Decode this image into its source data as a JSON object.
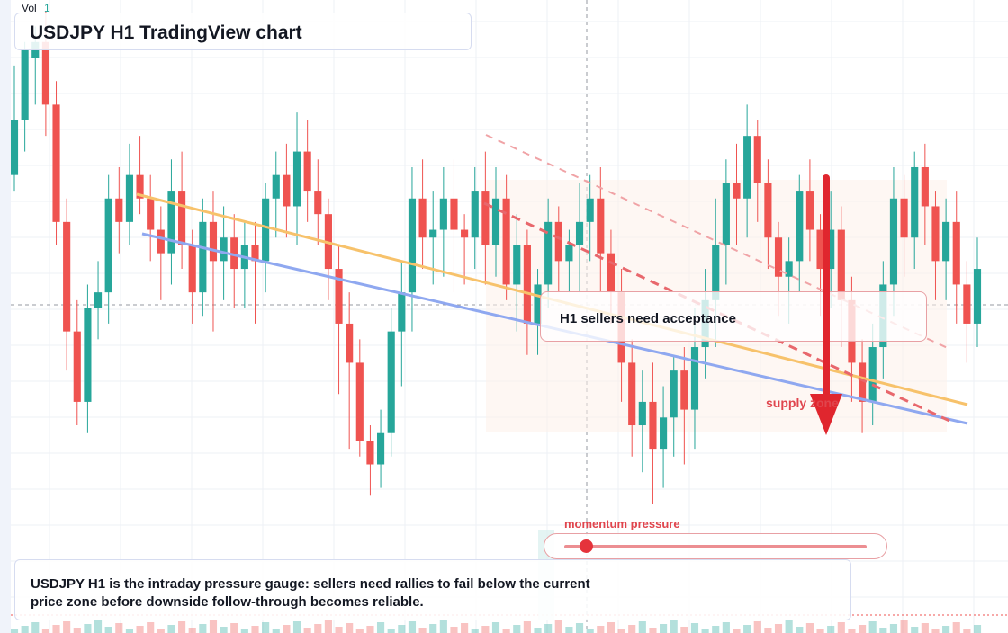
{
  "chart": {
    "symbol": "USDJPY",
    "timeframe": "H1",
    "vol_label": "Vol",
    "vol_value": "1"
  },
  "title": "USDJPY H1 TradingView chart",
  "callout": {
    "text": "H1 sellers need acceptance"
  },
  "zone_label": "supply zone",
  "momentum": {
    "label": "momentum pressure",
    "level": 0.07
  },
  "summary": "USDJPY H1 is the intraday pressure gauge: sellers need rallies to fail below the current price zone before downside follow-through becomes reliable.",
  "colors": {
    "up": "#26a69a",
    "down": "#ef5350",
    "accent_red": "#e0454d",
    "trendline_orange": "#f7c26b",
    "trendline_blue": "#8fa8f0"
  },
  "chart_data": {
    "type": "candlestick",
    "ohlc": [
      [
        620,
        627,
        618,
        634
      ],
      [
        627,
        636,
        623,
        637
      ],
      [
        635,
        637,
        629,
        639
      ],
      [
        637,
        629,
        625,
        641
      ],
      [
        629,
        614,
        611,
        632
      ],
      [
        614,
        600,
        595,
        617
      ],
      [
        600,
        591,
        588,
        604
      ],
      [
        591,
        603,
        587,
        606
      ],
      [
        603,
        605,
        599,
        609
      ],
      [
        605,
        617,
        601,
        620
      ],
      [
        617,
        614,
        610,
        621
      ],
      [
        614,
        620,
        611,
        624
      ],
      [
        620,
        617,
        615,
        625
      ],
      [
        617,
        613,
        609,
        620
      ],
      [
        613,
        610,
        604,
        616
      ],
      [
        610,
        618,
        606,
        622
      ],
      [
        618,
        611,
        608,
        623
      ],
      [
        611,
        605,
        601,
        613
      ],
      [
        605,
        614,
        602,
        617
      ],
      [
        614,
        609,
        600,
        618
      ],
      [
        609,
        612,
        604,
        616
      ],
      [
        612,
        608,
        603,
        615
      ],
      [
        608,
        611,
        603,
        614
      ],
      [
        611,
        609,
        601,
        614
      ],
      [
        609,
        617,
        605,
        619
      ],
      [
        617,
        620,
        612,
        623
      ],
      [
        620,
        616,
        612,
        624
      ],
      [
        616,
        623,
        611,
        628
      ],
      [
        623,
        618,
        614,
        627
      ],
      [
        618,
        615,
        611,
        622
      ],
      [
        615,
        608,
        604,
        617
      ],
      [
        608,
        601,
        592,
        611
      ],
      [
        601,
        596,
        585,
        605
      ],
      [
        596,
        586,
        584,
        599
      ],
      [
        586,
        583,
        579,
        588
      ],
      [
        583,
        587,
        580,
        590
      ],
      [
        587,
        600,
        584,
        603
      ],
      [
        600,
        605,
        593,
        609
      ],
      [
        605,
        617,
        600,
        621
      ],
      [
        617,
        612,
        608,
        622
      ],
      [
        612,
        613,
        606,
        618
      ],
      [
        613,
        617,
        607,
        621
      ],
      [
        617,
        613,
        605,
        622
      ],
      [
        613,
        612,
        606,
        615
      ],
      [
        612,
        618,
        608,
        621
      ],
      [
        618,
        611,
        606,
        623
      ],
      [
        611,
        617,
        607,
        621
      ],
      [
        617,
        606,
        604,
        620
      ],
      [
        606,
        611,
        600,
        615
      ],
      [
        611,
        601,
        597,
        613
      ],
      [
        601,
        606,
        597,
        608
      ],
      [
        606,
        614,
        603,
        617
      ],
      [
        614,
        609,
        605,
        616
      ],
      [
        609,
        611,
        605,
        613
      ],
      [
        611,
        614,
        605,
        619
      ],
      [
        614,
        617,
        609,
        620
      ],
      [
        617,
        610,
        605,
        621
      ],
      [
        610,
        605,
        601,
        613
      ],
      [
        605,
        596,
        591,
        608
      ],
      [
        596,
        588,
        584,
        599
      ],
      [
        588,
        591,
        582,
        595
      ],
      [
        591,
        585,
        578,
        596
      ],
      [
        585,
        589,
        580,
        593
      ],
      [
        589,
        595,
        584,
        597
      ],
      [
        595,
        590,
        583,
        598
      ],
      [
        590,
        598,
        585,
        603
      ],
      [
        598,
        604,
        594,
        608
      ],
      [
        604,
        611,
        598,
        617
      ],
      [
        611,
        619,
        606,
        622
      ],
      [
        619,
        617,
        611,
        624
      ],
      [
        617,
        625,
        612,
        629
      ],
      [
        625,
        619,
        614,
        627
      ],
      [
        619,
        612,
        608,
        622
      ],
      [
        612,
        607,
        602,
        614
      ],
      [
        607,
        609,
        601,
        612
      ],
      [
        609,
        618,
        605,
        620
      ],
      [
        618,
        613,
        609,
        622
      ],
      [
        613,
        608,
        602,
        615
      ],
      [
        608,
        613,
        603,
        618
      ],
      [
        613,
        604,
        598,
        616
      ],
      [
        604,
        596,
        591,
        607
      ],
      [
        596,
        591,
        587,
        599
      ],
      [
        591,
        598,
        588,
        601
      ],
      [
        598,
        606,
        594,
        609
      ],
      [
        606,
        617,
        602,
        621
      ],
      [
        617,
        612,
        607,
        620
      ],
      [
        612,
        621,
        608,
        623
      ],
      [
        621,
        616,
        611,
        624
      ],
      [
        616,
        609,
        604,
        618
      ],
      [
        609,
        614,
        604,
        617
      ],
      [
        614,
        606,
        601,
        618
      ],
      [
        606,
        601,
        596,
        609
      ],
      [
        601,
        608,
        598,
        612
      ]
    ]
  }
}
